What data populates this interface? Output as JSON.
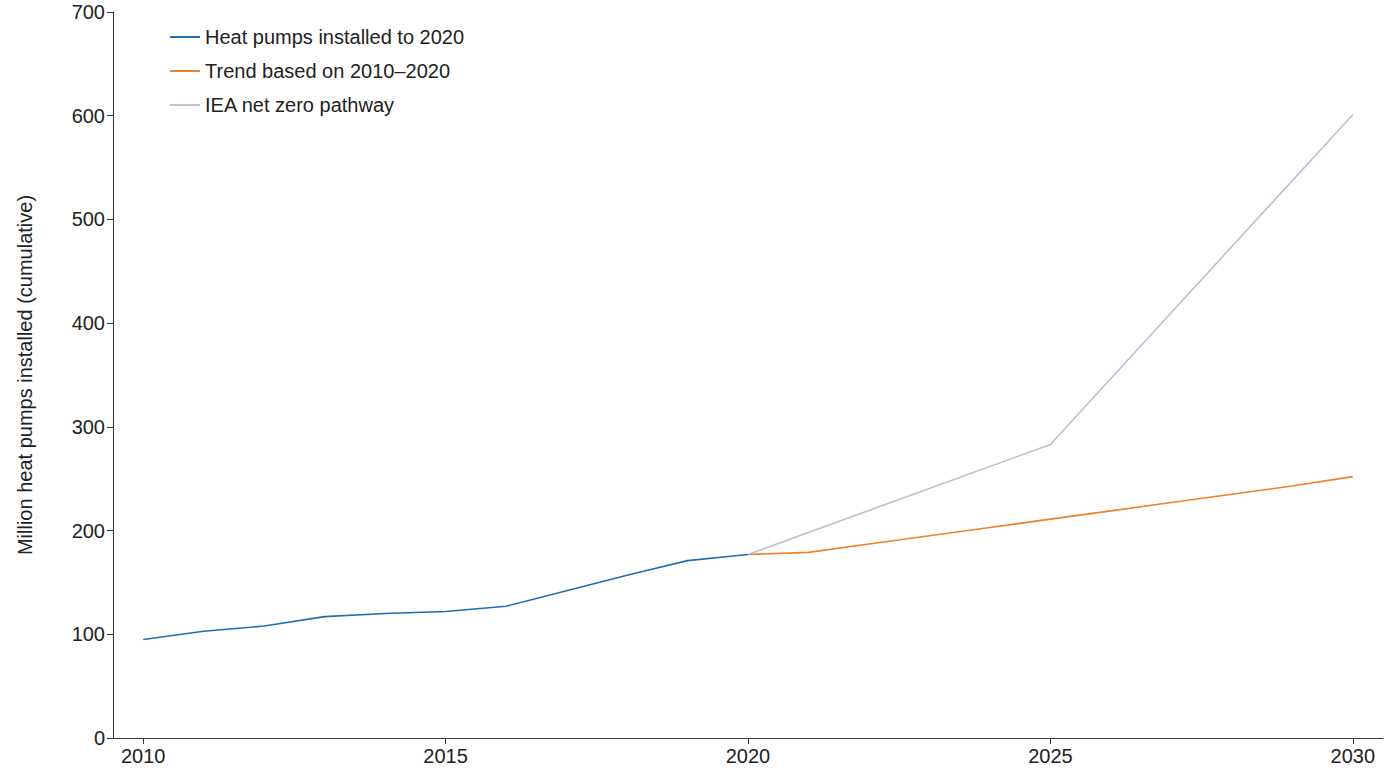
{
  "chart_data": {
    "type": "line",
    "y_label": "Million heat pumps installed (cumulative)",
    "x": [
      2010,
      2011,
      2012,
      2013,
      2014,
      2015,
      2016,
      2017,
      2018,
      2019,
      2020,
      2021,
      2022,
      2023,
      2024,
      2025,
      2026,
      2027,
      2028,
      2029,
      2030
    ],
    "series": [
      {
        "name": "Heat pumps installed to 2020",
        "color": "#1f6fb2",
        "line_style": "solid",
        "values": [
          95,
          103,
          108,
          117,
          120,
          122,
          127,
          142,
          157,
          171,
          177,
          null,
          null,
          null,
          null,
          null,
          null,
          null,
          null,
          null,
          null
        ]
      },
      {
        "name": "Trend based on 2010–2020",
        "color": "#f07f2a",
        "line_style": "solid",
        "values": [
          null,
          null,
          null,
          null,
          null,
          null,
          null,
          null,
          null,
          null,
          177,
          179,
          187,
          195,
          203,
          211,
          219,
          227,
          235,
          243,
          252
        ]
      },
      {
        "name": "IEA net zero pathway",
        "color": "#b9c0d0",
        "line_style": "solid",
        "values": [
          null,
          null,
          null,
          null,
          null,
          null,
          null,
          null,
          null,
          null,
          177,
          null,
          null,
          null,
          null,
          283,
          null,
          null,
          null,
          null,
          601
        ]
      }
    ],
    "xlim": [
      2009.5,
      2030.5
    ],
    "xticks": [
      2010,
      2015,
      2020,
      2025,
      2030
    ],
    "ylim": [
      0,
      700
    ],
    "yticks": [
      0,
      100,
      200,
      300,
      400,
      500,
      600,
      700
    ],
    "grid": false,
    "legend": "top-left"
  }
}
